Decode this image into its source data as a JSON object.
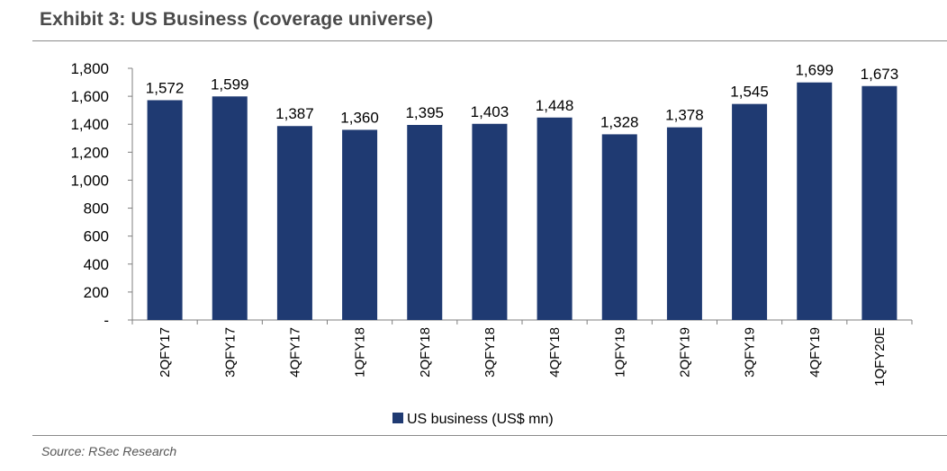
{
  "title": "Exhibit 3: US Business (coverage universe)",
  "source": "Source: RSec Research",
  "chart_data": {
    "type": "bar",
    "categories": [
      "2QFY17",
      "3QFY17",
      "4QFY17",
      "1QFY18",
      "2QFY18",
      "3QFY18",
      "4QFY18",
      "1QFY19",
      "2QFY19",
      "3QFY19",
      "4QFY19",
      "1QFY20E"
    ],
    "series": [
      {
        "name": "US business (US$ mn)",
        "values": [
          1572,
          1599,
          1387,
          1360,
          1395,
          1403,
          1448,
          1328,
          1378,
          1545,
          1699,
          1673
        ],
        "labels": [
          "1,572",
          "1,599",
          "1,387",
          "1,360",
          "1,395",
          "1,403",
          "1,448",
          "1,328",
          "1,378",
          "1,545",
          "1,699",
          "1,673"
        ],
        "color": "#1f3a72"
      }
    ],
    "ylim": [
      0,
      1800
    ],
    "yticks": [
      0,
      200,
      400,
      600,
      800,
      1000,
      1200,
      1400,
      1600,
      1800
    ],
    "ytick_labels": [
      "-",
      "200",
      "400",
      "600",
      "800",
      "1,000",
      "1,200",
      "1,400",
      "1,600",
      "1,800"
    ],
    "xlabel": "",
    "ylabel": "",
    "grid": false,
    "legend": "bottom"
  }
}
